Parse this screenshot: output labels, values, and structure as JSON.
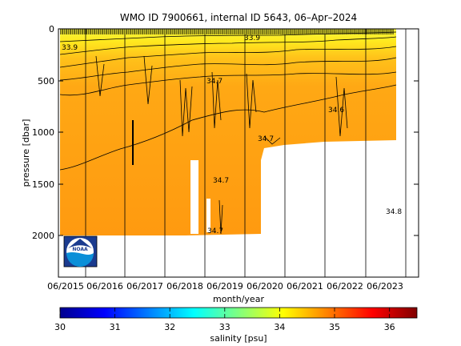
{
  "chart_data": {
    "type": "heatmap",
    "title": "WMO ID 7900661, internal ID 5643, 06–Apr–2024",
    "xlabel": "month/year",
    "ylabel": "pressure [dbar]",
    "x_tick_labels": [
      "06/2015",
      "06/2016",
      "06/2017",
      "06/2018",
      "06/2019",
      "06/2020",
      "06/2021",
      "06/2022",
      "06/2023"
    ],
    "x_range": [
      "2015-04",
      "2024-04"
    ],
    "y_ticks": [
      0,
      500,
      1000,
      1500,
      2000
    ],
    "y_range": [
      0,
      2400
    ],
    "y_inverted": true,
    "colorbar": {
      "label": "salinity [psu]",
      "ticks": [
        30,
        31,
        32,
        33,
        34,
        35,
        36
      ],
      "range": [
        30,
        36.5
      ],
      "colormap": "jet"
    },
    "contour_labels": [
      "33.9",
      "33.9",
      "34.7",
      "34.6",
      "34.7",
      "34.7",
      "34.7",
      "34.8"
    ],
    "notes": "Salinity section vs. time and pressure; surface ~33.8 psu (yellow), deep ~34.7 psu (orange). Profiles reach ~2000 dbar until 2020, ~1100 dbar afterwards.",
    "colors": {
      "surface": "#f4f43a",
      "mid": "#ffc21a",
      "deep": "#ff9a10",
      "missing": "#ffffff"
    }
  },
  "logo": {
    "name": "noaa-logo",
    "text": "NOAA"
  }
}
